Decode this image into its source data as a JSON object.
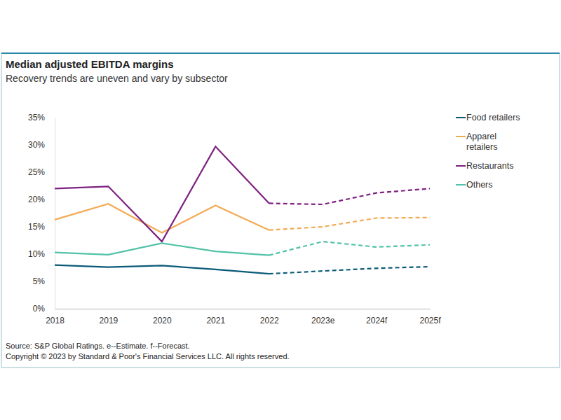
{
  "chart_data": {
    "type": "line",
    "title": "Median adjusted EBITDA margins",
    "subtitle": "Recovery trends are uneven and vary by subsector",
    "categories": [
      "2018",
      "2019",
      "2020",
      "2021",
      "2022",
      "2023e",
      "2024f",
      "2025f"
    ],
    "series": [
      {
        "name": "Food retailers",
        "color": "#0b5a78",
        "values": [
          8.0,
          7.6,
          7.9,
          7.2,
          6.4,
          6.9,
          7.4,
          7.7
        ]
      },
      {
        "name": "Apparel retailers",
        "color": "#f2ab55",
        "values": [
          16.3,
          19.2,
          13.9,
          18.9,
          14.4,
          15.0,
          16.6,
          16.7
        ]
      },
      {
        "name": "Restaurants",
        "color": "#7d2180",
        "values": [
          22.0,
          22.4,
          12.3,
          29.7,
          19.3,
          19.1,
          21.2,
          22.0
        ]
      },
      {
        "name": "Others",
        "color": "#52c2a8",
        "values": [
          10.3,
          9.9,
          12.0,
          10.5,
          9.8,
          12.3,
          11.3,
          11.7
        ]
      }
    ],
    "ylim": [
      0,
      35
    ],
    "yticks": [
      {
        "value": 0,
        "label": "0%"
      },
      {
        "value": 5,
        "label": "5%"
      },
      {
        "value": 10,
        "label": "10%"
      },
      {
        "value": 15,
        "label": "15%"
      },
      {
        "value": 20,
        "label": "20%"
      },
      {
        "value": 25,
        "label": "25%"
      },
      {
        "value": 30,
        "label": "30%"
      },
      {
        "value": 35,
        "label": "35%"
      }
    ],
    "grid": false,
    "legend": "right",
    "annotations": [
      "Source: S&P Global Ratings. e--Estimate. f--Forecast.",
      "Copyright © 2023 by Standard & Poor's Financial Services LLC. All rights reserved."
    ]
  }
}
